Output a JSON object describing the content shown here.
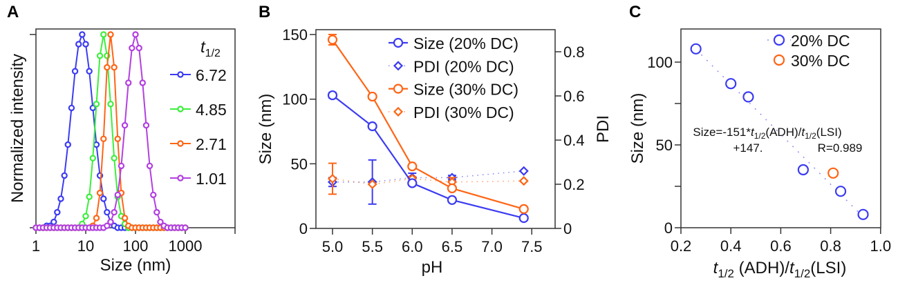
{
  "panel_labels": [
    "A",
    "B",
    "C"
  ],
  "chart_data": [
    {
      "type": "line",
      "panel": "A",
      "xlabel": "Size (nm)",
      "ylabel": "Normalized intensity",
      "xscale": "log",
      "xlim": [
        1,
        10000
      ],
      "ylim": [
        0,
        1
      ],
      "xtick_values": [
        1,
        10,
        100,
        1000,
        10000
      ],
      "xtick_labels": [
        "1",
        "10",
        "100",
        "1000",
        ""
      ],
      "ytick_values": [
        0,
        1
      ],
      "legend_title_main": "t",
      "legend_title_sub": "1/2",
      "legend_placement": "right",
      "x": [
        1,
        1.18,
        1.39,
        1.64,
        1.93,
        2.28,
        2.68,
        3.16,
        3.73,
        4.39,
        5.18,
        6.11,
        7.2,
        8.48,
        10,
        11.8,
        13.9,
        16.4,
        19.3,
        22.8,
        26.8,
        31.6,
        37.3,
        43.9,
        51.8,
        61.1,
        72,
        84.8,
        100,
        118,
        139,
        164,
        193,
        228,
        268,
        316,
        373,
        439,
        518,
        611,
        720,
        848,
        1000
      ],
      "series": [
        {
          "name": "6.72",
          "color": "#3b3bf2",
          "values": [
            0,
            0,
            0,
            0.01,
            0.01,
            0.03,
            0.08,
            0.15,
            0.27,
            0.43,
            0.62,
            0.81,
            0.95,
            1,
            0.95,
            0.81,
            0.62,
            0.43,
            0.27,
            0.15,
            0.08,
            0.03,
            0.01,
            0,
            0,
            0,
            0,
            0,
            0,
            0,
            0,
            0,
            0,
            0,
            0,
            0,
            0,
            0,
            0,
            0,
            0,
            0,
            0
          ]
        },
        {
          "name": "4.85",
          "color": "#3cee3c",
          "values": [
            0,
            0,
            0,
            0,
            0,
            0,
            0,
            0,
            0,
            0,
            0,
            0,
            0,
            0.02,
            0.06,
            0.16,
            0.36,
            0.64,
            0.89,
            1,
            0.89,
            0.64,
            0.36,
            0.16,
            0.06,
            0.02,
            0,
            0,
            0,
            0,
            0,
            0,
            0,
            0,
            0,
            0,
            0,
            0,
            0,
            0,
            0,
            0,
            0
          ]
        },
        {
          "name": "2.71",
          "color": "#ff6414",
          "values": [
            0,
            0,
            0,
            0,
            0,
            0,
            0,
            0,
            0,
            0,
            0,
            0,
            0,
            0,
            0,
            0,
            0.01,
            0.05,
            0.18,
            0.46,
            0.83,
            1,
            0.83,
            0.46,
            0.18,
            0.05,
            0.01,
            0,
            0,
            0,
            0,
            0,
            0,
            0,
            0,
            0,
            0,
            0,
            0,
            0,
            0,
            0,
            0
          ]
        },
        {
          "name": "1.01",
          "color": "#b23fe0",
          "values": [
            0,
            0,
            0,
            0,
            0,
            0,
            0,
            0,
            0,
            0,
            0,
            0,
            0,
            0,
            0,
            0,
            0,
            0,
            0,
            0,
            0.01,
            0.03,
            0.08,
            0.17,
            0.32,
            0.53,
            0.75,
            0.93,
            1,
            0.93,
            0.75,
            0.53,
            0.32,
            0.17,
            0.08,
            0.03,
            0.01,
            0,
            0,
            0,
            0,
            0,
            0
          ]
        }
      ]
    },
    {
      "type": "line",
      "panel": "B",
      "xlabel": "pH",
      "ylabel": "Size (nm)",
      "y2label": "PDI",
      "xlim": [
        4.8,
        7.8
      ],
      "ylim": [
        0,
        150
      ],
      "y2lim": [
        0,
        0.84
      ],
      "xtick_values": [
        5.0,
        5.5,
        6.0,
        6.5,
        7.0,
        7.5
      ],
      "xtick_labels": [
        "5.0",
        "5.5",
        "6.0",
        "6.5",
        "7.0",
        "7.5"
      ],
      "ytick_values": [
        0,
        50,
        100,
        150
      ],
      "ytick_labels": [
        "0",
        "50",
        "100",
        "150"
      ],
      "y2tick_values": [
        0,
        0.2,
        0.4,
        0.6,
        0.8
      ],
      "y2tick_labels": [
        "0",
        "0.2",
        "0.4",
        "0.6",
        "0.8"
      ],
      "legend_placement": "top-right",
      "x": [
        5.0,
        5.5,
        6.0,
        6.5,
        7.4
      ],
      "series": [
        {
          "name": "Size (20% DC)",
          "axis": "left",
          "marker": "circle",
          "line": "solid",
          "color": "#3b3bf2",
          "values": [
            103,
            79,
            35,
            22,
            8
          ],
          "errors": [
            2,
            0,
            0,
            0,
            0
          ]
        },
        {
          "name": "PDI (20% DC)",
          "axis": "right",
          "marker": "diamond",
          "line": "dotted",
          "color": "#3b3bf2",
          "values": [
            0.21,
            0.21,
            0.23,
            0.23,
            0.26
          ],
          "errors": [
            0.02,
            0.1,
            0.02,
            0.01,
            0
          ]
        },
        {
          "name": "Size (30% DC)",
          "axis": "left",
          "marker": "circle",
          "line": "solid",
          "color": "#ff6414",
          "values": [
            146,
            102,
            48,
            31,
            15
          ],
          "errors": [
            4,
            0,
            0,
            0,
            0
          ]
        },
        {
          "name": "PDI (30% DC)",
          "axis": "right",
          "marker": "diamond",
          "line": "dotted",
          "color": "#ff6414",
          "values": [
            0.225,
            0.2,
            0.225,
            0.21,
            0.215
          ],
          "errors": [
            0.07,
            0,
            0.01,
            0.02,
            0
          ]
        }
      ]
    },
    {
      "type": "scatter",
      "panel": "C",
      "xlabel_parts": [
        "t",
        "1/2",
        " (ADH)/",
        "t",
        "1/2",
        "(LSI)"
      ],
      "ylabel": "Size (nm)",
      "xlim": [
        0.2,
        1.0
      ],
      "ylim": [
        0,
        120
      ],
      "xtick_values": [
        0.2,
        0.4,
        0.6,
        0.8,
        1.0
      ],
      "xtick_labels": [
        "0.2",
        "0.4",
        "0.6",
        "0.8",
        "1.0"
      ],
      "ytick_values": [
        0,
        25,
        50,
        75,
        100
      ],
      "ytick_labels": [
        "0",
        "",
        "50",
        "",
        "100"
      ],
      "legend_placement": "top-right",
      "series": [
        {
          "name": "20% DC",
          "color": "#3b3bf2",
          "x": [
            0.26,
            0.4,
            0.47,
            0.69,
            0.84,
            0.93
          ],
          "y": [
            108,
            87,
            79,
            35,
            22,
            8
          ]
        },
        {
          "name": "30% DC",
          "color": "#ff6414",
          "x": [
            0.81
          ],
          "y": [
            33
          ]
        }
      ],
      "fit": {
        "slope": -151,
        "intercept": 147,
        "x_range": [
          0.26,
          0.93
        ],
        "color": "#8f8ff5"
      },
      "annotation": {
        "line1_parts": [
          "Size=-151*",
          "t",
          "1/2",
          "(ADH)/",
          "t",
          "1/2",
          "(LSI)"
        ],
        "line2_left": "+147.",
        "line2_right": "R=0.989"
      }
    }
  ]
}
